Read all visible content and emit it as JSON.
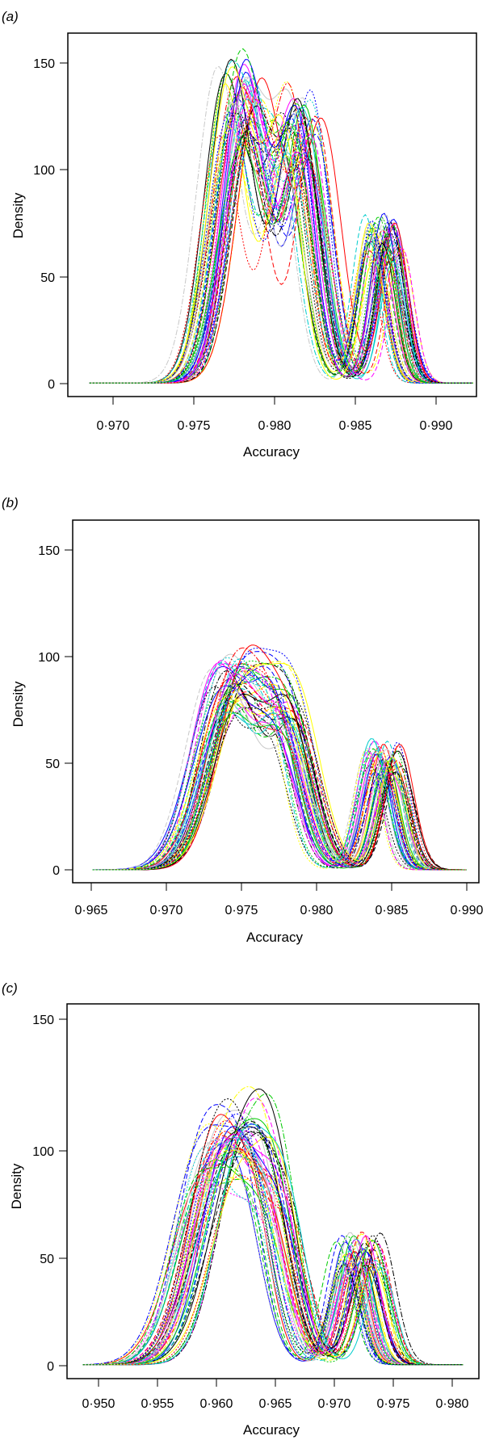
{
  "chart_data": [
    {
      "type": "line",
      "panel_label": "(a)",
      "xlabel": "Accuracy",
      "ylabel": "Density",
      "xlim": [
        0.9672,
        0.9917
      ],
      "ylim": [
        -6,
        156
      ],
      "xticks": [
        0.97,
        0.975,
        0.98,
        0.985,
        0.99
      ],
      "xtick_labels": [
        "0·970",
        "0·975",
        "0·980",
        "0·985",
        "0·990"
      ],
      "yticks": [
        0,
        50,
        100,
        150
      ],
      "ytick_labels": [
        "0",
        "50",
        "100",
        "150"
      ],
      "grid": false,
      "legend": "none",
      "n_series": 52,
      "x_range": [
        0.9685,
        0.9915
      ],
      "series_shape": [
        {
          "peak_x": 0.9775,
          "peak_y": 128,
          "width": 0.0013
        },
        {
          "peak_x": 0.981,
          "peak_y": 110,
          "width": 0.0011
        },
        {
          "peak_x": 0.986,
          "peak_y": 66,
          "width": 0.0008
        }
      ],
      "spread_x": 0.0011
    },
    {
      "type": "line",
      "panel_label": "(b)",
      "xlabel": "Accuracy",
      "ylabel": "Density",
      "xlim": [
        0.9638,
        0.9903
      ],
      "ylim": [
        -6,
        162
      ],
      "xticks": [
        0.965,
        0.97,
        0.975,
        0.98,
        0.985,
        0.99
      ],
      "xtick_labels": [
        "0·965",
        "0·970",
        "0·975",
        "0·980",
        "0·985",
        "0·990"
      ],
      "yticks": [
        0,
        50,
        100,
        150
      ],
      "ytick_labels": [
        "0",
        "50",
        "100",
        "150"
      ],
      "grid": false,
      "legend": "none",
      "n_series": 52,
      "x_range": [
        0.9651,
        0.9895
      ],
      "series_shape": [
        {
          "peak_x": 0.974,
          "peak_y": 85,
          "width": 0.0018
        },
        {
          "peak_x": 0.9775,
          "peak_y": 62,
          "width": 0.0014
        },
        {
          "peak_x": 0.984,
          "peak_y": 53,
          "width": 0.0009
        }
      ],
      "spread_x": 0.001
    },
    {
      "type": "line",
      "panel_label": "(c)",
      "xlabel": "Accuracy",
      "ylabel": "Density",
      "xlim": [
        0.9477,
        0.9813
      ],
      "ylim": [
        -6,
        156
      ],
      "xticks": [
        0.95,
        0.955,
        0.96,
        0.965,
        0.97,
        0.975,
        0.98
      ],
      "xtick_labels": [
        "0·950",
        "0·955",
        "0·960",
        "0·965",
        "0·970",
        "0·975",
        "0·980"
      ],
      "yticks": [
        0,
        50,
        100,
        150
      ],
      "ytick_labels": [
        "0",
        "50",
        "100",
        "150"
      ],
      "grid": false,
      "legend": "none",
      "n_series": 52,
      "x_range": [
        0.949,
        0.98
      ],
      "series_shape": [
        {
          "peak_x": 0.9605,
          "peak_y": 90,
          "width": 0.0024
        },
        {
          "peak_x": 0.964,
          "peak_y": 55,
          "width": 0.0017
        },
        {
          "peak_x": 0.9715,
          "peak_y": 50,
          "width": 0.0012
        }
      ],
      "spread_x": 0.0015
    }
  ],
  "series_colors": [
    "#ff0000",
    "#0000ff",
    "#000000",
    "#00cc00",
    "#ff00ff",
    "#00cccc",
    "#ffff00",
    "#c8c8c8"
  ],
  "series_dashes": [
    "none",
    "6,3",
    "2,2",
    "7,2,2,2"
  ]
}
